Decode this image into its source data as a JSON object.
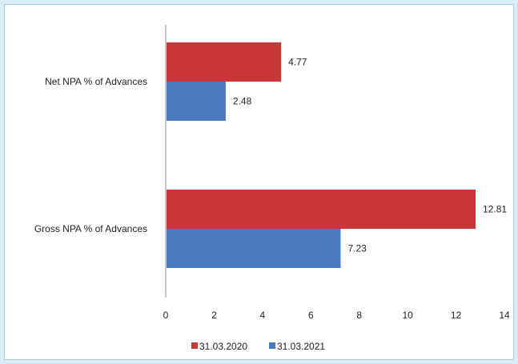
{
  "chart_data": {
    "type": "bar",
    "orientation": "horizontal",
    "categories": [
      "Net NPA % of Advances",
      "Gross NPA % of Advances"
    ],
    "series": [
      {
        "name": "31.03.2020",
        "values": [
          4.77,
          12.81
        ],
        "color": "#c9373a"
      },
      {
        "name": "31.03.2021",
        "values": [
          2.48,
          7.23
        ],
        "color": "#4a7ac0"
      }
    ],
    "data_labels": [
      [
        "4.77",
        "12.81"
      ],
      [
        "2.48",
        "7.23"
      ]
    ],
    "xlim": [
      0,
      14
    ],
    "xticks": [
      "0",
      "2",
      "4",
      "6",
      "8",
      "10",
      "12",
      "14"
    ],
    "legend_position": "bottom",
    "grid": false,
    "axis_color": "#c8c8c8"
  }
}
